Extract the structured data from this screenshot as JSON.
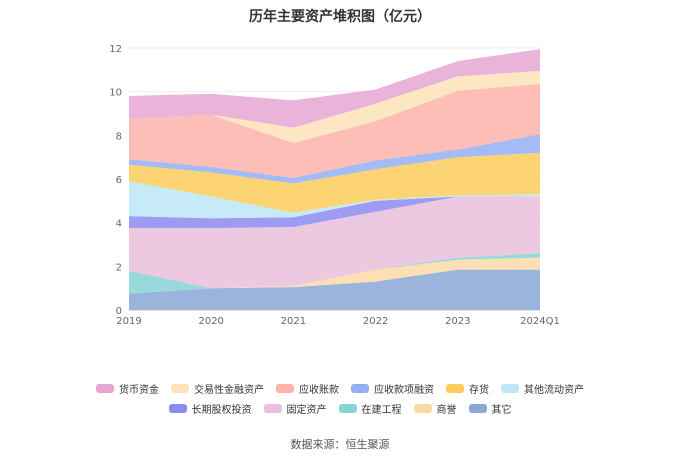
{
  "chart_data": {
    "type": "area",
    "title": "历年主要资产堆积图（亿元）",
    "categories": [
      "2019",
      "2020",
      "2021",
      "2022",
      "2023",
      "2024Q1"
    ],
    "ylim": [
      0,
      12
    ],
    "yticks": [
      0,
      2,
      4,
      6,
      8,
      10,
      12
    ],
    "stacked": true,
    "grid": true,
    "legend_position": "bottom",
    "series": [
      {
        "name": "其它",
        "color": "#8aa7d6",
        "values": [
          0.75,
          1.0,
          1.05,
          1.3,
          1.85,
          1.85
        ]
      },
      {
        "name": "商誉",
        "color": "#fbd9a5",
        "values": [
          0.0,
          0.0,
          0.05,
          0.55,
          0.45,
          0.55
        ]
      },
      {
        "name": "在建工程",
        "color": "#86d4d6",
        "values": [
          1.05,
          0.0,
          0.0,
          0.0,
          0.1,
          0.2
        ]
      },
      {
        "name": "固定资产",
        "color": "#eabfdc",
        "values": [
          1.95,
          2.75,
          2.7,
          2.65,
          2.8,
          2.6
        ]
      },
      {
        "name": "长期股权投资",
        "color": "#8b8cf0",
        "values": [
          0.55,
          0.45,
          0.45,
          0.5,
          0.0,
          0.0
        ]
      },
      {
        "name": "其他流动资产",
        "color": "#bde6f8",
        "values": [
          1.6,
          1.0,
          0.2,
          0.05,
          0.05,
          0.1
        ]
      },
      {
        "name": "存货",
        "color": "#fccd5a",
        "values": [
          0.75,
          1.1,
          1.35,
          1.4,
          1.75,
          1.9
        ]
      },
      {
        "name": "应收款项融资",
        "color": "#94aff4",
        "values": [
          0.25,
          0.25,
          0.25,
          0.4,
          0.35,
          0.85
        ]
      },
      {
        "name": "应收账款",
        "color": "#fcb3aa",
        "values": [
          1.85,
          2.4,
          1.6,
          1.8,
          2.7,
          2.3
        ]
      },
      {
        "name": "交易性金融资产",
        "color": "#fde3b7",
        "values": [
          0.0,
          0.0,
          0.7,
          0.8,
          0.65,
          0.6
        ]
      },
      {
        "name": "货币资金",
        "color": "#e6a6d2",
        "values": [
          1.05,
          0.95,
          1.25,
          0.65,
          0.7,
          1.0
        ]
      }
    ],
    "legend_rows": [
      [
        "货币资金",
        "交易性金融资产",
        "应收账款",
        "应收款项融资",
        "存货",
        "其他流动资产"
      ],
      [
        "长期股权投资",
        "固定资产",
        "在建工程",
        "商誉",
        "其它"
      ]
    ]
  },
  "source": "数据来源：恒生聚源"
}
